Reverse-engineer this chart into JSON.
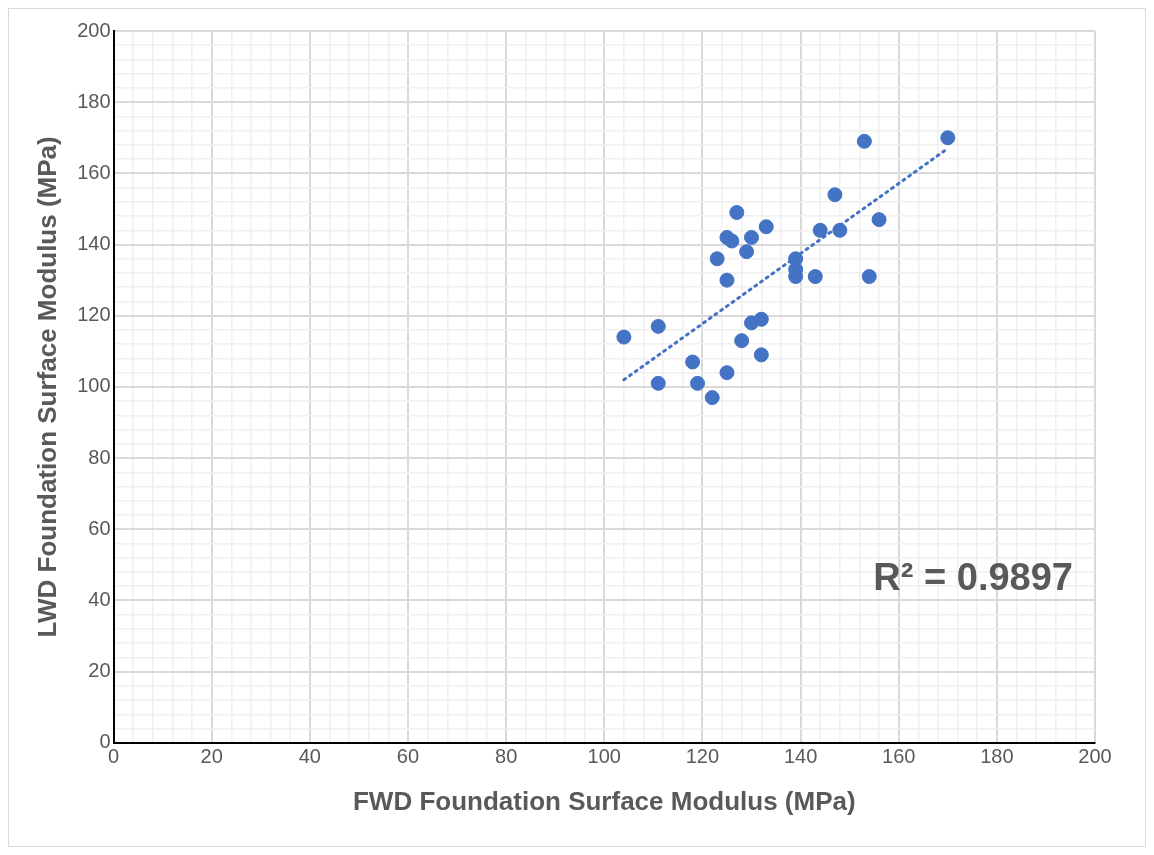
{
  "chart_data": {
    "type": "scatter",
    "xlabel": "FWD Foundation Surface Modulus (MPa)",
    "ylabel": "LWD Foundation Surface Modulus (MPa)",
    "xlim": [
      0,
      200
    ],
    "ylim": [
      0,
      200
    ],
    "xticks": [
      0,
      {
        "value": 4,
        "label": null
      },
      {
        "value": 8,
        "label": null
      },
      {
        "value": 12,
        "label": null
      },
      {
        "value": 16,
        "label": null
      },
      20,
      {
        "value": 24,
        "label": null
      },
      {
        "value": 28,
        "label": null
      },
      {
        "value": 32,
        "label": null
      },
      {
        "value": 36,
        "label": null
      },
      40,
      {
        "value": 44,
        "label": null
      },
      {
        "value": 48,
        "label": null
      },
      {
        "value": 52,
        "label": null
      },
      {
        "value": 56,
        "label": null
      },
      60,
      {
        "value": 64,
        "label": null
      },
      {
        "value": 68,
        "label": null
      },
      {
        "value": 72,
        "label": null
      },
      {
        "value": 76,
        "label": null
      },
      80,
      {
        "value": 84,
        "label": null
      },
      {
        "value": 88,
        "label": null
      },
      {
        "value": 92,
        "label": null
      },
      {
        "value": 96,
        "label": null
      },
      100,
      {
        "value": 104,
        "label": null
      },
      {
        "value": 108,
        "label": null
      },
      {
        "value": 112,
        "label": null
      },
      {
        "value": 116,
        "label": null
      },
      120,
      {
        "value": 124,
        "label": null
      },
      {
        "value": 128,
        "label": null
      },
      {
        "value": 132,
        "label": null
      },
      {
        "value": 136,
        "label": null
      },
      140,
      {
        "value": 144,
        "label": null
      },
      {
        "value": 148,
        "label": null
      },
      {
        "value": 152,
        "label": null
      },
      {
        "value": 156,
        "label": null
      },
      160,
      {
        "value": 164,
        "label": null
      },
      {
        "value": 168,
        "label": null
      },
      {
        "value": 172,
        "label": null
      },
      {
        "value": 176,
        "label": null
      },
      180,
      {
        "value": 184,
        "label": null
      },
      {
        "value": 188,
        "label": null
      },
      {
        "value": 192,
        "label": null
      },
      {
        "value": 196,
        "label": null
      },
      200
    ],
    "yticks": [
      0,
      {
        "value": 4,
        "label": null
      },
      {
        "value": 8,
        "label": null
      },
      {
        "value": 12,
        "label": null
      },
      {
        "value": 16,
        "label": null
      },
      20,
      {
        "value": 24,
        "label": null
      },
      {
        "value": 28,
        "label": null
      },
      {
        "value": 32,
        "label": null
      },
      {
        "value": 36,
        "label": null
      },
      40,
      {
        "value": 44,
        "label": null
      },
      {
        "value": 48,
        "label": null
      },
      {
        "value": 52,
        "label": null
      },
      {
        "value": 56,
        "label": null
      },
      60,
      {
        "value": 64,
        "label": null
      },
      {
        "value": 68,
        "label": null
      },
      {
        "value": 72,
        "label": null
      },
      {
        "value": 76,
        "label": null
      },
      80,
      {
        "value": 84,
        "label": null
      },
      {
        "value": 88,
        "label": null
      },
      {
        "value": 92,
        "label": null
      },
      {
        "value": 96,
        "label": null
      },
      100,
      {
        "value": 104,
        "label": null
      },
      {
        "value": 108,
        "label": null
      },
      {
        "value": 112,
        "label": null
      },
      {
        "value": 116,
        "label": null
      },
      120,
      {
        "value": 124,
        "label": null
      },
      {
        "value": 128,
        "label": null
      },
      {
        "value": 132,
        "label": null
      },
      {
        "value": 136,
        "label": null
      },
      140,
      {
        "value": 144,
        "label": null
      },
      {
        "value": 148,
        "label": null
      },
      {
        "value": 152,
        "label": null
      },
      {
        "value": 156,
        "label": null
      },
      160,
      {
        "value": 164,
        "label": null
      },
      {
        "value": 168,
        "label": null
      },
      {
        "value": 172,
        "label": null
      },
      {
        "value": 176,
        "label": null
      },
      180,
      {
        "value": 184,
        "label": null
      },
      {
        "value": 188,
        "label": null
      },
      {
        "value": 192,
        "label": null
      },
      {
        "value": 196,
        "label": null
      },
      200
    ],
    "grid": true,
    "legend": false,
    "marker": "circle",
    "series": [
      {
        "color": "#4472c4",
        "x": [
          104,
          111,
          111,
          118,
          119,
          122,
          123,
          125,
          126,
          127,
          125,
          125,
          128,
          129,
          130,
          130,
          132,
          132,
          133,
          139,
          139,
          139,
          143,
          144,
          147,
          148,
          153,
          154,
          156,
          170
        ],
        "values": [
          114,
          117,
          101,
          107,
          101,
          97,
          136,
          142,
          141,
          149,
          130,
          104,
          113,
          138,
          142,
          118,
          119,
          109,
          145,
          136,
          133,
          131,
          131,
          144,
          154,
          144,
          169,
          131,
          147,
          170
        ]
      },
      {
        "type": "line",
        "color": "#4472c4",
        "line_style": "dotted",
        "marker": "none",
        "x": [
          104,
          170
        ],
        "values": [
          102,
          167
        ]
      }
    ],
    "annotations": [
      "R² = 0.9897"
    ]
  }
}
